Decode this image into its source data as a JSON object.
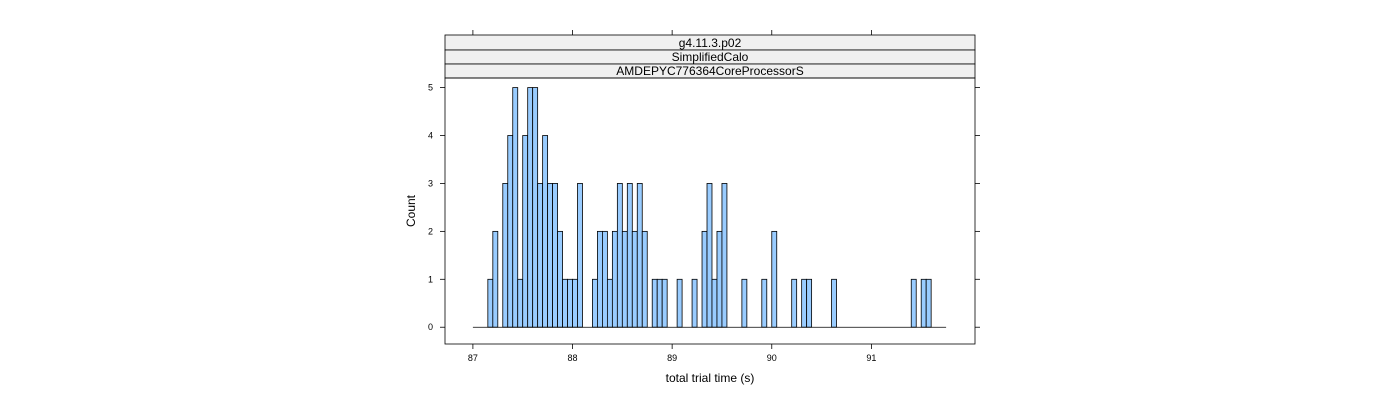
{
  "chart_data": {
    "type": "bar",
    "strips": [
      "g4.11.3.p02",
      "SimplifiedCalo",
      "AMDEPYC776364CoreProcessorS"
    ],
    "xlabel": "total trial time (s)",
    "ylabel": "Count",
    "xlim": [
      86.72,
      92.04
    ],
    "ylim": [
      -0.35,
      5.2
    ],
    "x_ticks": [
      87,
      88,
      89,
      90,
      91
    ],
    "y_ticks": [
      0,
      1,
      2,
      3,
      4,
      5
    ],
    "bin_start": 87.0,
    "bin_width": 0.05,
    "counts": [
      0,
      0,
      0,
      1,
      2,
      0,
      3,
      4,
      5,
      1,
      4,
      5,
      5,
      3,
      4,
      3,
      3,
      2,
      1,
      1,
      1,
      3,
      0,
      0,
      1,
      2,
      2,
      1,
      2,
      3,
      2,
      3,
      2,
      3,
      2,
      0,
      1,
      1,
      1,
      0,
      0,
      1,
      0,
      0,
      1,
      0,
      2,
      3,
      1,
      2,
      3,
      0,
      0,
      0,
      1,
      0,
      0,
      0,
      1,
      0,
      2,
      0,
      0,
      0,
      1,
      0,
      1,
      1,
      0,
      0,
      0,
      0,
      1,
      0,
      0,
      0,
      0,
      0,
      0,
      0,
      0,
      0,
      0,
      0,
      0,
      0,
      0,
      0,
      1,
      0,
      1,
      1,
      0,
      0,
      0
    ],
    "bar_color": "#99ccff",
    "bar_edge": "#000000",
    "strip_color": "#f0f0f0",
    "grid": false
  }
}
